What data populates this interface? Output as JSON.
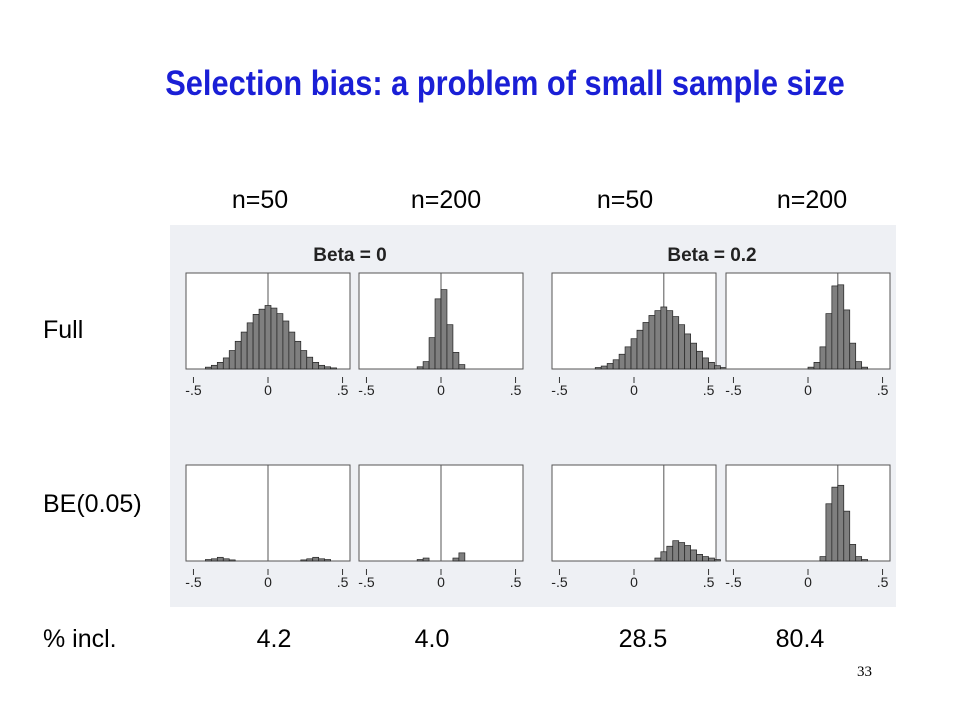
{
  "slide": {
    "title": "Selection bias: a problem of small sample size",
    "column_labels": [
      "n=50",
      "n=200",
      "n=50",
      "n=200"
    ],
    "row_labels": [
      "Full",
      "BE(0.05)"
    ],
    "pct_label": "% incl.",
    "pct_values": [
      "4.2",
      "4.0",
      "28.5",
      "80.4"
    ],
    "page_number": "33"
  },
  "colors": {
    "title": "#1a1fd6",
    "bar_fill": "#7f7f7f",
    "bar_stroke": "#222222",
    "figure_bg": "#eef0f4"
  },
  "chart_data": {
    "type": "bar",
    "group_titles": [
      "Beta = 0",
      "Beta = 0.2"
    ],
    "xlim": [
      -0.55,
      0.55
    ],
    "x_tick_labels": [
      "-.5",
      "0",
      ".5"
    ],
    "x_tick_values": [
      -0.5,
      0,
      0.5
    ],
    "bin_width": 0.04,
    "panels": [
      {
        "row": "Full",
        "group": "Beta = 0",
        "n": 50,
        "ref_line": 0,
        "ymax": 0.26,
        "x": [
          -0.4,
          -0.36,
          -0.32,
          -0.28,
          -0.24,
          -0.2,
          -0.16,
          -0.12,
          -0.08,
          -0.04,
          0,
          0.04,
          0.08,
          0.12,
          0.16,
          0.2,
          0.24,
          0.28,
          0.32,
          0.36,
          0.4,
          0.44
        ],
        "values": [
          0.005,
          0.01,
          0.018,
          0.03,
          0.05,
          0.075,
          0.1,
          0.125,
          0.148,
          0.162,
          0.172,
          0.165,
          0.15,
          0.13,
          0.1,
          0.075,
          0.05,
          0.032,
          0.018,
          0.01,
          0.006,
          0.003
        ]
      },
      {
        "row": "Full",
        "group": "Beta = 0",
        "n": 200,
        "ref_line": 0,
        "ymax": 0.26,
        "x": [
          -0.14,
          -0.1,
          -0.06,
          -0.02,
          0.02,
          0.06,
          0.1,
          0.14
        ],
        "values": [
          0.006,
          0.02,
          0.085,
          0.19,
          0.215,
          0.12,
          0.045,
          0.012
        ]
      },
      {
        "row": "Full",
        "group": "Beta = 0.2",
        "n": 50,
        "ref_line": 0.2,
        "ymax": 0.26,
        "x": [
          -0.24,
          -0.2,
          -0.16,
          -0.12,
          -0.08,
          -0.04,
          0,
          0.04,
          0.08,
          0.12,
          0.16,
          0.2,
          0.24,
          0.28,
          0.32,
          0.36,
          0.4,
          0.44,
          0.48,
          0.52,
          0.56,
          0.6
        ],
        "values": [
          0.004,
          0.008,
          0.015,
          0.025,
          0.04,
          0.06,
          0.082,
          0.105,
          0.126,
          0.145,
          0.158,
          0.168,
          0.158,
          0.142,
          0.12,
          0.095,
          0.07,
          0.048,
          0.03,
          0.018,
          0.009,
          0.004
        ]
      },
      {
        "row": "Full",
        "group": "Beta = 0.2",
        "n": 200,
        "ref_line": 0.2,
        "ymax": 0.26,
        "x": [
          0.02,
          0.06,
          0.1,
          0.14,
          0.18,
          0.22,
          0.26,
          0.3,
          0.34,
          0.38
        ],
        "values": [
          0.005,
          0.018,
          0.06,
          0.15,
          0.225,
          0.228,
          0.16,
          0.07,
          0.02,
          0.005
        ]
      },
      {
        "row": "BE(0.05)",
        "group": "Beta = 0",
        "n": 50,
        "ref_line": 0,
        "ymax": 0.26,
        "x": [
          -0.4,
          -0.36,
          -0.32,
          -0.28,
          -0.24,
          0.24,
          0.28,
          0.32,
          0.36,
          0.4
        ],
        "values": [
          0.004,
          0.006,
          0.01,
          0.006,
          0.003,
          0.003,
          0.006,
          0.01,
          0.006,
          0.004
        ]
      },
      {
        "row": "BE(0.05)",
        "group": "Beta = 0",
        "n": 200,
        "ref_line": 0,
        "ymax": 0.26,
        "x": [
          -0.14,
          -0.1,
          0.1,
          0.14
        ],
        "values": [
          0.004,
          0.008,
          0.008,
          0.022
        ]
      },
      {
        "row": "BE(0.05)",
        "group": "Beta = 0.2",
        "n": 50,
        "ref_line": 0.2,
        "ymax": 0.26,
        "x": [
          0.16,
          0.2,
          0.24,
          0.28,
          0.32,
          0.36,
          0.4,
          0.44,
          0.48,
          0.52,
          0.56
        ],
        "values": [
          0.008,
          0.025,
          0.04,
          0.055,
          0.05,
          0.042,
          0.03,
          0.018,
          0.012,
          0.008,
          0.004
        ]
      },
      {
        "row": "BE(0.05)",
        "group": "Beta = 0.2",
        "n": 200,
        "ref_line": 0.2,
        "ymax": 0.26,
        "x": [
          0.1,
          0.14,
          0.18,
          0.22,
          0.26,
          0.3,
          0.34,
          0.38
        ],
        "values": [
          0.012,
          0.155,
          0.2,
          0.205,
          0.135,
          0.045,
          0.012,
          0.004
        ]
      }
    ]
  }
}
